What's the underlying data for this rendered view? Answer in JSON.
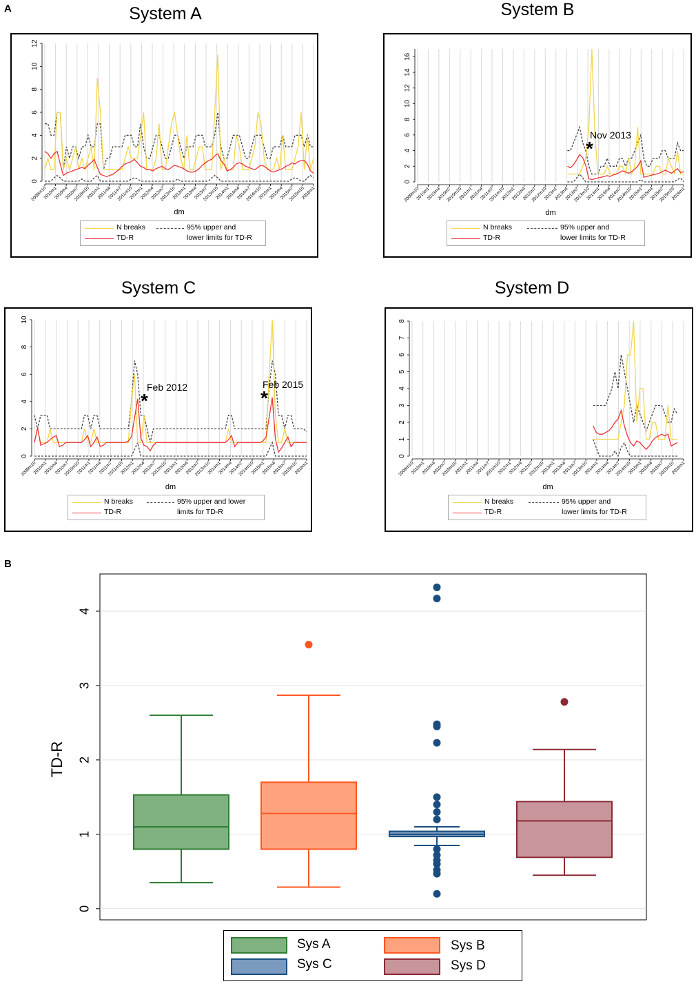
{
  "panel_a_label": "A",
  "panel_b_label": "B",
  "legend": {
    "n_breaks": "N breaks",
    "tdr": "TD-R",
    "limits_two_line_1": "95% upper and",
    "limits_two_line_2": "lower limits for TD-R",
    "limits_c_1": "95% upper and lower",
    "limits_c_2": "limits for TD-R"
  },
  "colors": {
    "n_breaks": "#F5D547",
    "tdr": "#E8333A",
    "limits": "#444444",
    "sysA": "#2E7D32",
    "sysA_fill": "#7FB27F",
    "sysB": "#FF5722",
    "sysB_fill": "#FFA37F",
    "sysC": "#1A4E80",
    "sysC_fill": "#7A9BBF",
    "sysD": "#8B2A35",
    "sysD_fill": "#C8959B"
  },
  "chart_data": [
    {
      "type": "line",
      "title": "System A",
      "xlabel": "dm",
      "ylabel": "",
      "ylim": [
        0,
        12
      ],
      "yticks": [
        0,
        2,
        4,
        6,
        8,
        10,
        12
      ],
      "xtick_labels": [
        "2009m10",
        "2010m1",
        "2010m4",
        "2010m7",
        "2010m10",
        "2011m1",
        "2011m4",
        "2011m7",
        "2011m10",
        "2012m1",
        "2012m4",
        "2012m7",
        "2012m10",
        "2013m1",
        "2013m4",
        "2013m7",
        "2013m10",
        "2014m1",
        "2014m4",
        "2014m7",
        "2014m10",
        "2015m1",
        "2015m4",
        "2015m7",
        "2015m10",
        "2016m1"
      ],
      "x_start": 0,
      "n_breaks": [
        1,
        2,
        1,
        1,
        6,
        6,
        1,
        2,
        1,
        2,
        3,
        1,
        2,
        1,
        2,
        3,
        1,
        9,
        6,
        1,
        1,
        1,
        1,
        1,
        1,
        1,
        2,
        3,
        2,
        2,
        2,
        4,
        6,
        1,
        1,
        1,
        2,
        5,
        1,
        1,
        3,
        5,
        6,
        4,
        2,
        1,
        4,
        1,
        1,
        2,
        3,
        3,
        1,
        1,
        1,
        6,
        11,
        1,
        2,
        1,
        1,
        1,
        4,
        3,
        1,
        1,
        1,
        2,
        3,
        6,
        5,
        2,
        1,
        1,
        1,
        2,
        1,
        4,
        1,
        1,
        1,
        2,
        3,
        6,
        1,
        4,
        1,
        2
      ],
      "tdr": [
        2.6,
        2.4,
        2.0,
        2.4,
        2.6,
        1.5,
        0.5,
        0.7,
        0.8,
        0.9,
        1.0,
        1.1,
        1.2,
        1.1,
        1.4,
        1.6,
        1.9,
        1.2,
        0.6,
        0.5,
        0.4,
        0.5,
        0.6,
        0.8,
        1.0,
        1.3,
        1.5,
        1.6,
        1.7,
        1.9,
        1.6,
        1.3,
        1.2,
        1.0,
        1.0,
        0.9,
        1.1,
        1.2,
        1.3,
        1.1,
        1.0,
        1.2,
        1.4,
        1.3,
        1.2,
        1.1,
        0.9,
        0.8,
        0.8,
        0.9,
        1.1,
        1.4,
        1.6,
        1.8,
        1.9,
        2.2,
        2.4,
        1.8,
        1.5,
        0.9,
        1.0,
        1.2,
        1.5,
        1.6,
        1.5,
        1.3,
        1.2,
        1.1,
        1.0,
        1.2,
        1.4,
        1.3,
        1.1,
        0.9,
        0.8,
        0.9,
        1.0,
        1.1,
        1.3,
        1.4,
        1.6,
        1.5,
        1.7,
        1.8,
        1.8,
        1.5,
        0.9,
        0.7
      ],
      "upper": [
        5,
        5,
        4,
        4,
        6,
        6,
        1,
        3,
        2,
        3,
        3,
        2,
        3,
        3,
        4,
        3,
        3,
        5,
        5,
        1,
        2,
        2,
        3,
        3,
        3,
        3,
        4,
        4,
        4,
        3,
        3,
        5,
        3,
        2,
        2,
        3,
        4,
        4,
        3,
        2,
        2,
        3,
        4,
        4,
        3,
        2,
        3,
        3,
        3,
        4,
        4,
        4,
        3,
        3,
        3,
        4,
        6,
        3,
        2,
        2,
        3,
        4,
        4,
        4,
        3,
        2,
        2,
        3,
        4,
        4,
        4,
        3,
        2,
        2,
        3,
        3,
        3,
        4,
        3,
        3,
        3,
        4,
        4,
        4,
        3,
        4,
        3,
        3
      ],
      "lower": [
        0,
        0,
        0,
        0.3,
        0.5,
        0.3,
        0,
        0,
        0,
        0,
        0,
        0,
        0.2,
        0,
        0,
        0,
        0.3,
        0.5,
        0,
        0,
        0,
        0,
        0,
        0,
        0,
        0,
        0,
        0,
        0.2,
        0.3,
        0.2,
        0,
        0,
        0,
        0,
        0,
        0,
        0,
        0,
        0,
        0,
        0,
        0,
        0.2,
        0,
        0,
        0,
        0,
        0,
        0,
        0,
        0,
        0,
        0,
        0.3,
        0.5,
        0.3,
        0,
        0,
        0,
        0,
        0,
        0,
        0,
        0,
        0,
        0,
        0,
        0,
        0,
        0,
        0,
        0,
        0,
        0,
        0,
        0,
        0,
        0,
        0,
        0.2,
        0.3,
        0.2,
        0,
        0,
        0.3,
        0.5,
        0.3
      ]
    },
    {
      "type": "line",
      "title": "System B",
      "xlabel": "dm",
      "ylabel": "",
      "ylim": [
        0,
        17
      ],
      "yticks": [
        0,
        2,
        4,
        6,
        8,
        10,
        12,
        14,
        16
      ],
      "xtick_labels": [
        "2009m10",
        "2010m1",
        "2010m4",
        "2010m7",
        "2010m10",
        "2011m1",
        "2011m4",
        "2011m7",
        "2011m10",
        "2012m1",
        "2012m4",
        "2012m7",
        "2012m10",
        "2013m1",
        "2013m4",
        "2013m7",
        "2013m10",
        "2014m1",
        "2014m4",
        "2014m7",
        "2014m10",
        "2015m1",
        "2015m4",
        "2015m7",
        "2015m10",
        "2016m1"
      ],
      "x_start": 49,
      "annotation": "Nov 2013",
      "n_breaks": [
        1,
        1,
        1,
        1,
        1,
        2,
        3,
        7,
        17,
        6,
        1,
        1,
        1,
        2,
        1,
        1,
        1,
        2,
        2,
        1,
        3,
        1,
        2,
        7,
        1,
        1,
        1,
        1,
        1,
        2,
        2,
        1,
        1,
        3,
        2,
        1,
        4,
        1,
        1
      ],
      "tdr": [
        2.0,
        1.8,
        2.2,
        2.8,
        3.5,
        3.1,
        2.1,
        0.4,
        0.3,
        0.4,
        0.5,
        0.6,
        0.7,
        0.8,
        0.7,
        0.9,
        1.0,
        1.2,
        1.4,
        1.3,
        1.1,
        1.3,
        1.6,
        2.0,
        2.7,
        0.6,
        0.7,
        0.8,
        0.9,
        1.0,
        1.1,
        1.3,
        1.5,
        1.3,
        1.1,
        1.4,
        1.7,
        1.2,
        1.3
      ],
      "upper": [
        4,
        4,
        5,
        6,
        7,
        5,
        4,
        2,
        1,
        1,
        1,
        2,
        2,
        3,
        2,
        2,
        2,
        3,
        3,
        2,
        3,
        3,
        4,
        5,
        6,
        3,
        2,
        2,
        3,
        3,
        3,
        4,
        4,
        3,
        3,
        3,
        5,
        4,
        4
      ],
      "lower": [
        0,
        0,
        0,
        0.5,
        1,
        0.5,
        0,
        0,
        0,
        0,
        0,
        0,
        0,
        0,
        0,
        0,
        0,
        0,
        0,
        0,
        0,
        0,
        0,
        0,
        0.3,
        0,
        0,
        0,
        0,
        0,
        0,
        0,
        0,
        0,
        0,
        0,
        0.3,
        0.5,
        0
      ]
    },
    {
      "type": "line",
      "title": "System C",
      "xlabel": "dm",
      "ylabel": "",
      "ylim": [
        0,
        10
      ],
      "yticks": [
        0,
        2,
        4,
        6,
        8,
        10
      ],
      "xtick_labels": [
        "2009m10",
        "2010m1",
        "2010m4",
        "2010m7",
        "2010m10",
        "2011m1",
        "2011m4",
        "2011m7",
        "2011m10",
        "2012m1",
        "2012m4",
        "2012m7",
        "2012m10",
        "2013m1",
        "2013m4",
        "2013m7",
        "2013m10",
        "2014m1",
        "2014m4",
        "2014m7",
        "2014m10",
        "2015m1",
        "2015m4",
        "2015m7",
        "2015m10",
        "2016m1"
      ],
      "x_start": 0,
      "annotations": [
        "Feb 2012",
        "Feb 2015"
      ],
      "n_breaks": [
        1,
        2,
        1,
        1,
        1,
        2,
        1,
        1,
        1,
        1,
        1,
        1,
        1,
        1,
        1,
        1,
        2,
        1,
        1,
        2,
        1,
        1,
        1,
        1,
        1,
        1,
        1,
        1,
        1,
        1,
        1,
        4,
        6,
        1,
        1,
        3,
        1,
        1,
        1,
        1,
        1,
        1,
        1,
        1,
        1,
        1,
        1,
        1,
        1,
        1,
        1,
        1,
        1,
        1,
        1,
        1,
        1,
        1,
        1,
        1,
        1,
        1,
        2,
        1,
        1,
        1,
        1,
        1,
        1,
        1,
        1,
        1,
        1,
        1,
        1,
        6,
        10,
        3,
        1,
        1,
        2,
        1,
        1,
        1,
        1,
        1,
        1,
        1
      ],
      "tdr": [
        1.0,
        2.1,
        0.8,
        0.9,
        1.0,
        1.2,
        1.4,
        1.5,
        0.7,
        0.8,
        1.0,
        1.0,
        1.0,
        1.0,
        1.0,
        1.0,
        1.2,
        1.5,
        0.7,
        1.0,
        1.4,
        0.7,
        0.8,
        1.0,
        1.0,
        1.0,
        1.0,
        1.0,
        1.0,
        1.0,
        1.1,
        1.4,
        2.8,
        4.2,
        1.3,
        0.8,
        0.7,
        0.4,
        0.8,
        1.0,
        1.0,
        1.0,
        1.0,
        1.0,
        1.0,
        1.0,
        1.0,
        1.0,
        1.0,
        1.0,
        1.0,
        1.0,
        1.0,
        1.0,
        1.0,
        1.0,
        1.0,
        1.0,
        1.0,
        1.0,
        1.0,
        1.0,
        1.2,
        1.5,
        0.7,
        1.0,
        1.0,
        1.0,
        1.0,
        1.0,
        1.0,
        1.0,
        1.0,
        1.1,
        1.4,
        2.8,
        4.3,
        1.3,
        0.3,
        0.6,
        1.0,
        1.4,
        0.7,
        1.0,
        1.0,
        1.0,
        1.0,
        1.0
      ],
      "upper": [
        3,
        2,
        3,
        3,
        3,
        2,
        2,
        2,
        2,
        2,
        2,
        2,
        2,
        2,
        2,
        2,
        3,
        3,
        2,
        3,
        3,
        2,
        2,
        2,
        2,
        2,
        2,
        2,
        2,
        2,
        2,
        4,
        7,
        6,
        3,
        3,
        2,
        1,
        2,
        2,
        2,
        2,
        2,
        2,
        2,
        2,
        2,
        2,
        2,
        2,
        2,
        2,
        2,
        2,
        2,
        2,
        2,
        2,
        2,
        2,
        2,
        2,
        3,
        3,
        2,
        2,
        2,
        2,
        2,
        2,
        2,
        2,
        2,
        2,
        2,
        5,
        7,
        6,
        3,
        3,
        2,
        3,
        3,
        2,
        2,
        2,
        2,
        1.8
      ],
      "lower": [
        0,
        0,
        0,
        0,
        0,
        0,
        0,
        0,
        0,
        0,
        0,
        0,
        0,
        0,
        0,
        0,
        0,
        0,
        0,
        0,
        0,
        0,
        0,
        0,
        0,
        0,
        0,
        0,
        0,
        0,
        0,
        0,
        0.5,
        1,
        0,
        0,
        0,
        0,
        0,
        0,
        0,
        0,
        0,
        0,
        0,
        0,
        0,
        0,
        0,
        0,
        0,
        0,
        0,
        0,
        0,
        0,
        0,
        0,
        0,
        0,
        0,
        0,
        0,
        0,
        0,
        0,
        0,
        0,
        0,
        0,
        0,
        0,
        0,
        0,
        0,
        0.5,
        1,
        0,
        0,
        0,
        0,
        0,
        0,
        0,
        0,
        0,
        0,
        0
      ]
    },
    {
      "type": "line",
      "title": "System D",
      "xlabel": "dm",
      "ylabel": "",
      "ylim": [
        0,
        8
      ],
      "yticks": [
        0,
        1,
        2,
        3,
        4,
        5,
        6,
        7,
        8
      ],
      "xtick_labels": [
        "2009m10",
        "2010m1",
        "2010m4",
        "2010m7",
        "2010m10",
        "2011m1",
        "2011m4",
        "2011m7",
        "2011m10",
        "2012m1",
        "2012m4",
        "2012m7",
        "2012m10",
        "2013m1",
        "2013m4",
        "2013m7",
        "2013m10",
        "2014m1",
        "2014m4",
        "2014m7",
        "2014m10",
        "2015m1",
        "2015m4",
        "2015m7",
        "2015m10",
        "2016m1"
      ],
      "x_start": 58,
      "n_breaks": [
        1,
        1,
        1,
        1,
        1,
        1,
        1,
        1,
        1,
        2,
        3,
        6,
        6,
        8,
        2,
        4,
        4,
        1,
        1,
        2,
        2,
        1,
        1,
        1,
        3,
        1,
        1,
        1
      ],
      "tdr": [
        1.8,
        1.4,
        1.3,
        1.3,
        1.4,
        1.5,
        1.7,
        2.0,
        2.2,
        2.7,
        1.8,
        1.2,
        0.8,
        0.6,
        0.9,
        0.8,
        0.6,
        0.4,
        0.6,
        0.9,
        1.1,
        1.2,
        1.3,
        1.2,
        1.3,
        0.6,
        0.7,
        0.8
      ],
      "upper": [
        3,
        3,
        3,
        3,
        3,
        3.5,
        4,
        5,
        4,
        6,
        5,
        4,
        3,
        2,
        3,
        2.5,
        2,
        1.5,
        2,
        2.5,
        3,
        3,
        3,
        2.5,
        2,
        2,
        2.8,
        2.5
      ],
      "lower": [
        1,
        0.5,
        0,
        0,
        0,
        0,
        0,
        0.3,
        0,
        0.5,
        0.8,
        0.3,
        0,
        0,
        0,
        0,
        0,
        0,
        0,
        0,
        0,
        0,
        0,
        0,
        0,
        0,
        0,
        0
      ]
    },
    {
      "type": "box",
      "title": "",
      "ylabel": "TD-R",
      "ylim": [
        -0.15,
        4.5
      ],
      "yticks": [
        0,
        1,
        2,
        3,
        4
      ],
      "categories": [
        "Sys A",
        "Sys B",
        "Sys C",
        "Sys D"
      ],
      "boxes": [
        {
          "name": "Sys A",
          "q1": 0.8,
          "median": 1.1,
          "q3": 1.53,
          "whisker_low": 0.35,
          "whisker_high": 2.6,
          "outliers": []
        },
        {
          "name": "Sys B",
          "q1": 0.8,
          "median": 1.28,
          "q3": 1.7,
          "whisker_low": 0.29,
          "whisker_high": 2.87,
          "outliers": [
            3.55
          ]
        },
        {
          "name": "Sys C",
          "q1": 0.97,
          "median": 1.0,
          "q3": 1.04,
          "whisker_low": 0.85,
          "whisker_high": 1.1,
          "outliers": [
            0.2,
            0.47,
            0.52,
            0.6,
            0.65,
            0.72,
            0.8,
            1.2,
            1.3,
            1.4,
            1.5,
            2.23,
            2.45,
            2.48,
            4.17,
            4.32
          ]
        },
        {
          "name": "Sys D",
          "q1": 0.69,
          "median": 1.18,
          "q3": 1.44,
          "whisker_low": 0.45,
          "whisker_high": 2.14,
          "outliers": [
            2.78
          ]
        }
      ]
    }
  ]
}
